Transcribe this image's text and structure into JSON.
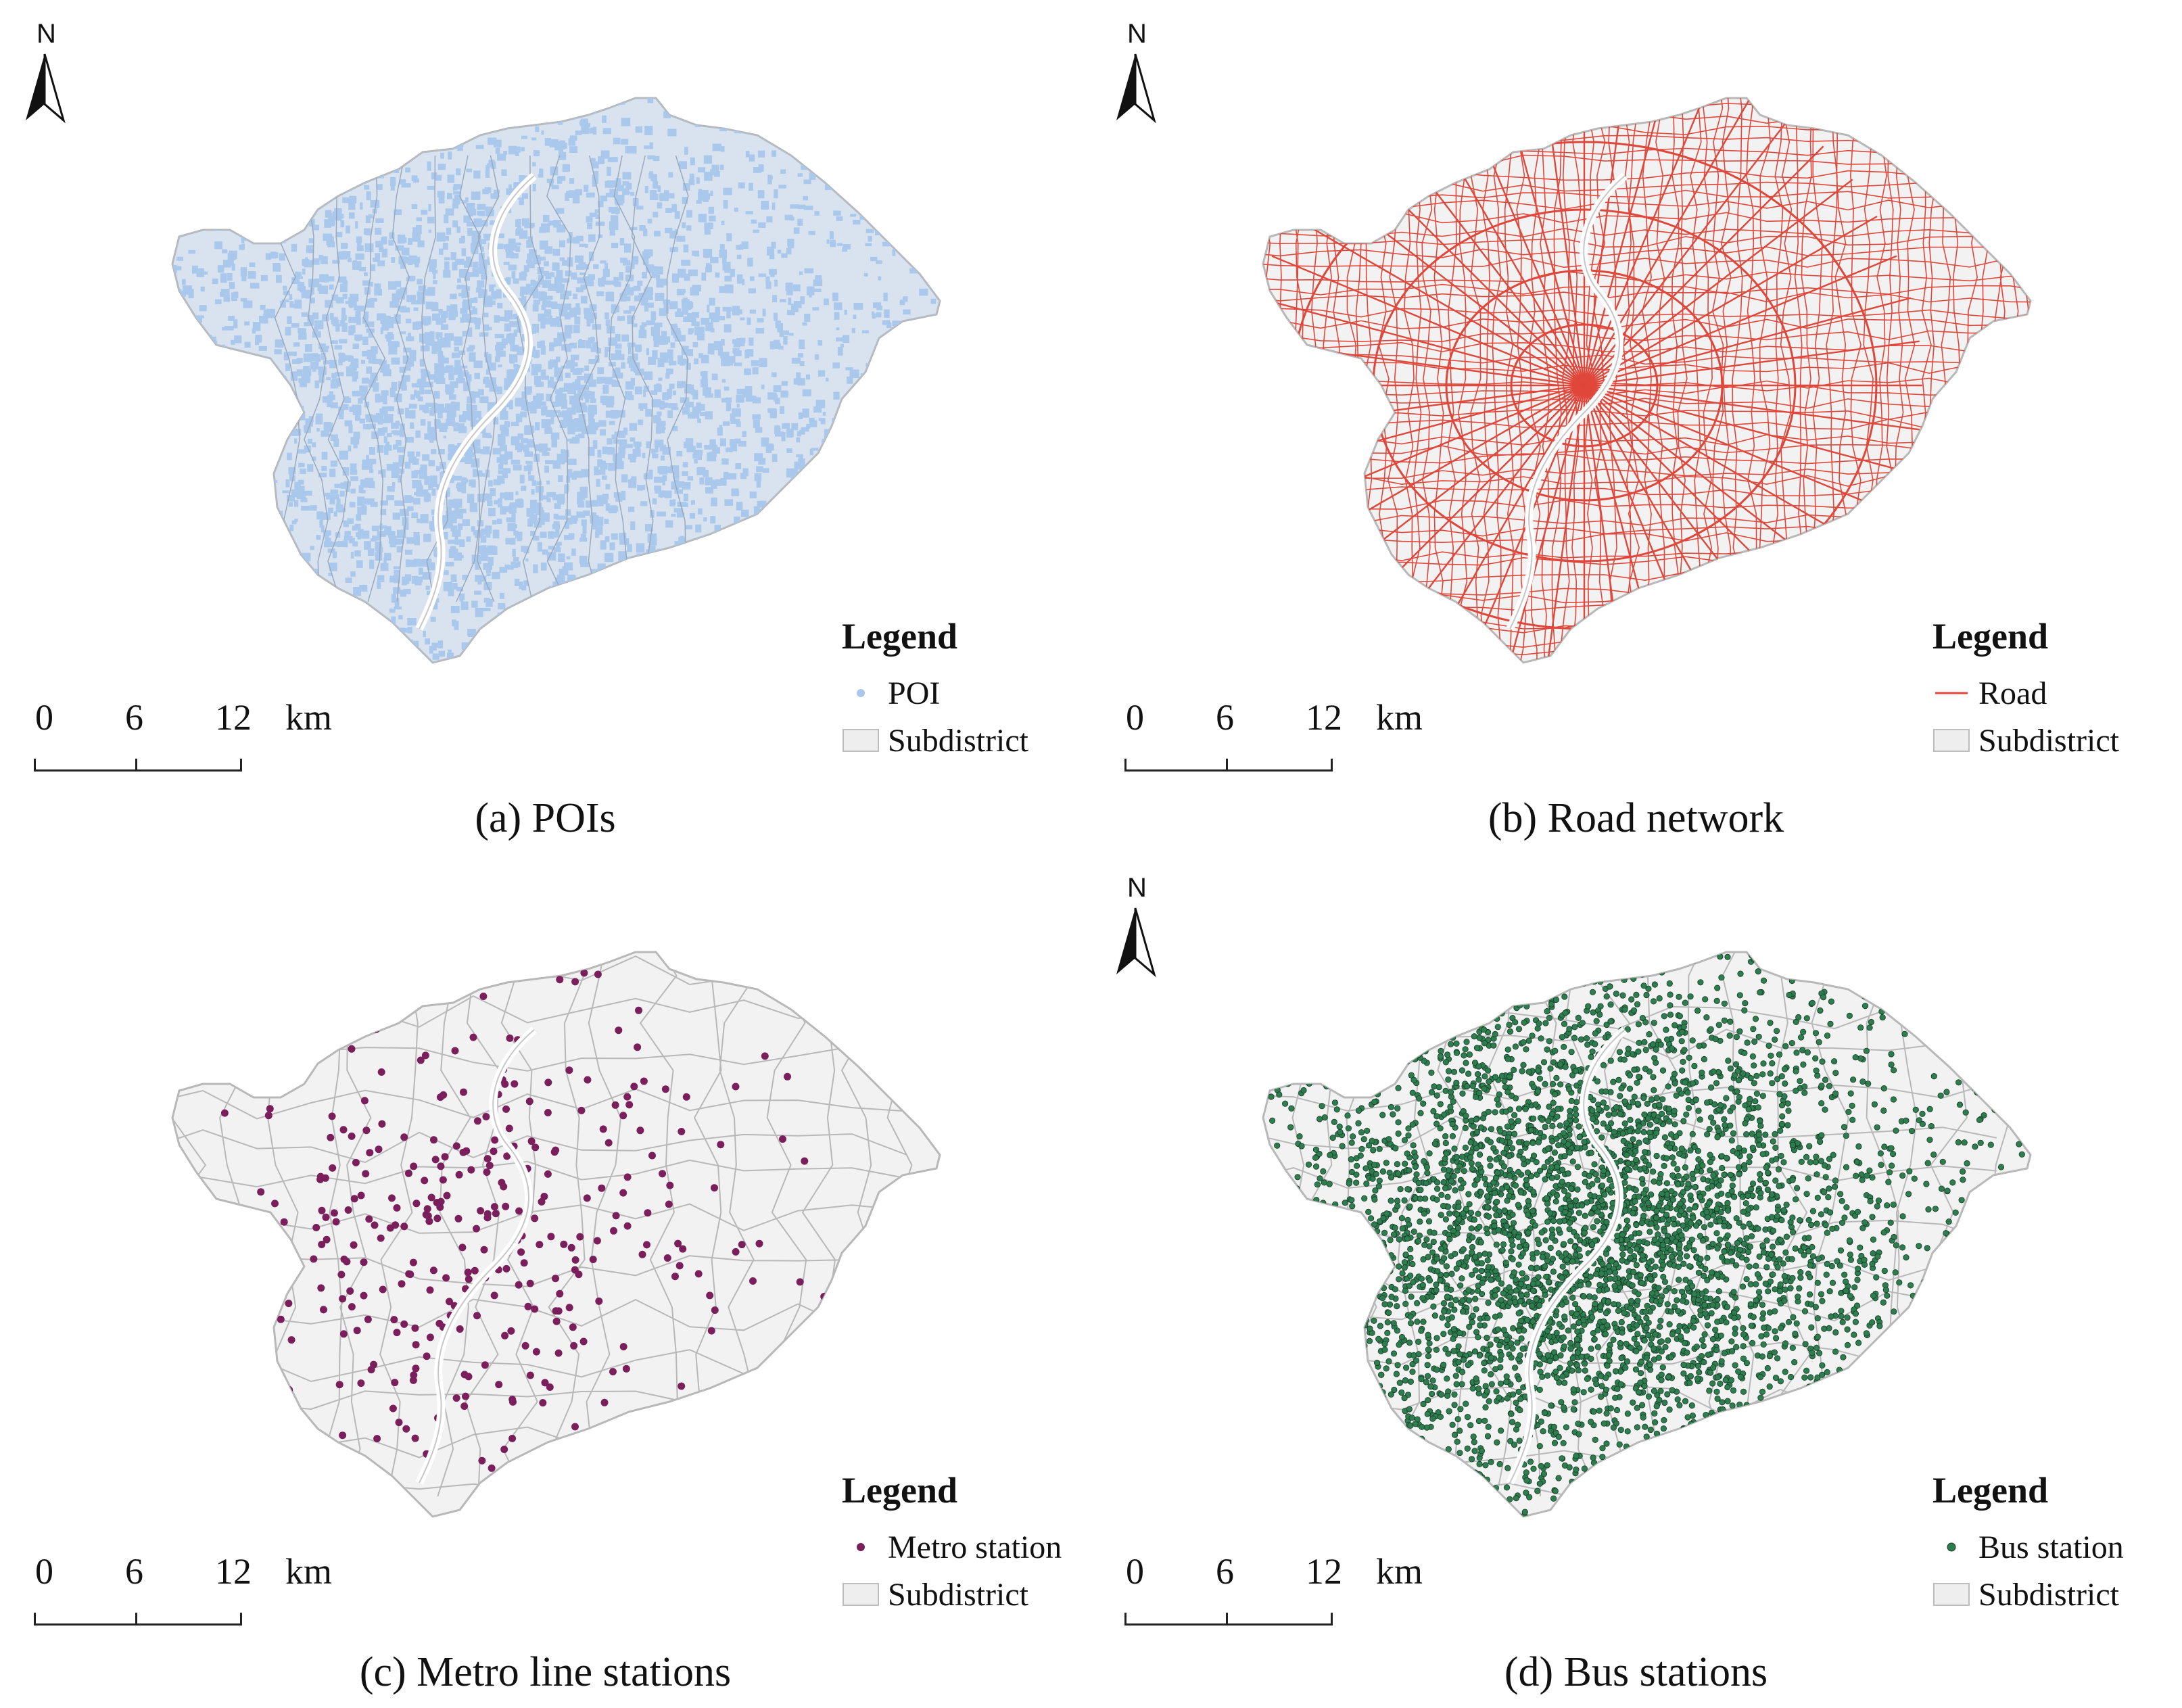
{
  "north_label": "N",
  "legend_title": "Legend",
  "subdistrict_label": "Subdistrict",
  "scale": {
    "labels": [
      "0",
      "6",
      "12"
    ],
    "unit": "km"
  },
  "colors": {
    "poi": "#a9c8ec",
    "road": "#e0463a",
    "metro": "#7a1f5c",
    "bus": "#2e7d4f",
    "subdistrict_fill": "#f2f2f2",
    "subdistrict_edge": "#b8b8b8"
  },
  "panels": [
    {
      "id": "a",
      "caption": "(a) POIs",
      "layer_label": "POI",
      "layer_type": "poi"
    },
    {
      "id": "b",
      "caption": "(b) Road network",
      "layer_label": "Road",
      "layer_type": "road"
    },
    {
      "id": "c",
      "caption": "(c) Metro line stations",
      "layer_label": "Metro station",
      "layer_type": "metro"
    },
    {
      "id": "d",
      "caption": "(d) Bus stations",
      "layer_label": "Bus station",
      "layer_type": "bus"
    }
  ]
}
